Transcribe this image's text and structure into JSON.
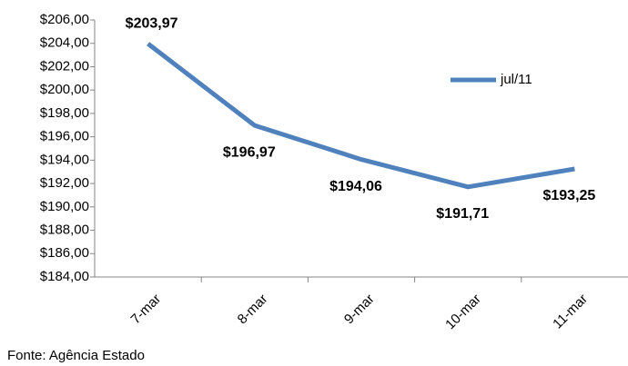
{
  "chart_data": {
    "type": "line",
    "categories": [
      "7-mar",
      "8-mar",
      "9-mar",
      "10-mar",
      "11-mar"
    ],
    "series": [
      {
        "name": "jul/11",
        "color": "#4f81bd",
        "values": [
          203.97,
          196.97,
          194.06,
          191.71,
          193.25
        ],
        "value_labels": [
          "$203,97",
          "$196,97",
          "$194,06",
          "$191,71",
          "$193,25"
        ]
      }
    ],
    "ylim": [
      184,
      206
    ],
    "yticks": [
      {
        "value": 184,
        "label": "$184,00"
      },
      {
        "value": 186,
        "label": "$186,00"
      },
      {
        "value": 188,
        "label": "$188,00"
      },
      {
        "value": 190,
        "label": "$190,00"
      },
      {
        "value": 192,
        "label": "$192,00"
      },
      {
        "value": 194,
        "label": "$194,00"
      },
      {
        "value": 196,
        "label": "$196,00"
      },
      {
        "value": 198,
        "label": "$198,00"
      },
      {
        "value": 200,
        "label": "$200,00"
      },
      {
        "value": 202,
        "label": "$202,00"
      },
      {
        "value": 204,
        "label": "$204,00"
      },
      {
        "value": 206,
        "label": "$206,00"
      }
    ],
    "legend": "right",
    "source": "Fonte: Agência Estado"
  }
}
